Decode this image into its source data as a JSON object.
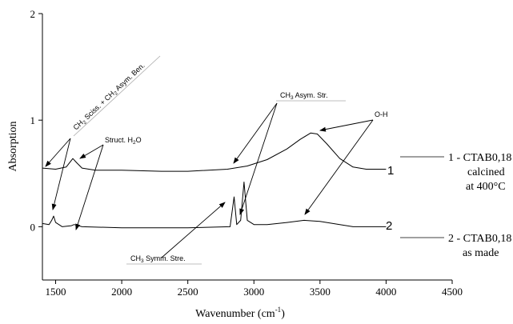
{
  "chart_data": {
    "type": "line",
    "title": "",
    "xlabel": "Wavenumber (cm",
    "xlabel_sup": "-1",
    "xlabel_close": ")",
    "ylabel": "Absorption",
    "xlim": [
      1400,
      4500
    ],
    "ylim": [
      -0.5,
      2
    ],
    "x_ticks": [
      1500,
      2000,
      2500,
      3000,
      3500,
      4000,
      4500
    ],
    "y_ticks": [
      0,
      1,
      2
    ],
    "grid": false,
    "legend_position": "right",
    "series": [
      {
        "name": "1 - CTAB0,18 calcined at 400°C",
        "curve_label": "1",
        "legend_lines": [
          "1 - CTAB0,18",
          "calcined",
          "at 400°C"
        ],
        "color": "#000000",
        "points": [
          [
            1400,
            0.55
          ],
          [
            1500,
            0.54
          ],
          [
            1580,
            0.56
          ],
          [
            1630,
            0.64
          ],
          [
            1660,
            0.6
          ],
          [
            1700,
            0.55
          ],
          [
            1800,
            0.53
          ],
          [
            2000,
            0.53
          ],
          [
            2300,
            0.52
          ],
          [
            2500,
            0.52
          ],
          [
            2800,
            0.54
          ],
          [
            2950,
            0.57
          ],
          [
            3100,
            0.63
          ],
          [
            3250,
            0.73
          ],
          [
            3350,
            0.82
          ],
          [
            3430,
            0.88
          ],
          [
            3480,
            0.87
          ],
          [
            3550,
            0.78
          ],
          [
            3650,
            0.64
          ],
          [
            3750,
            0.56
          ],
          [
            3850,
            0.54
          ],
          [
            4000,
            0.54
          ]
        ]
      },
      {
        "name": "2 - CTAB0,18 as made",
        "curve_label": "2",
        "legend_lines": [
          "2 - CTAB0,18",
          "as made"
        ],
        "color": "#000000",
        "points": [
          [
            1400,
            0.03
          ],
          [
            1450,
            0.02
          ],
          [
            1470,
            0.06
          ],
          [
            1485,
            0.1
          ],
          [
            1500,
            0.04
          ],
          [
            1550,
            0.0
          ],
          [
            1620,
            0.01
          ],
          [
            1640,
            0.02
          ],
          [
            1700,
            0.0
          ],
          [
            2000,
            -0.01
          ],
          [
            2500,
            -0.01
          ],
          [
            2820,
            0.0
          ],
          [
            2850,
            0.28
          ],
          [
            2870,
            0.02
          ],
          [
            2900,
            0.06
          ],
          [
            2925,
            0.42
          ],
          [
            2950,
            0.06
          ],
          [
            3000,
            0.02
          ],
          [
            3100,
            0.02
          ],
          [
            3250,
            0.04
          ],
          [
            3380,
            0.06
          ],
          [
            3500,
            0.05
          ],
          [
            3650,
            0.02
          ],
          [
            3750,
            0.0
          ],
          [
            4000,
            0.0
          ]
        ]
      }
    ],
    "annotations": {
      "ch2_sciss": {
        "main": "CH",
        "sub": "2",
        "mid": " Sciss. + CH",
        "sub2": "2",
        "end": " Asym. Ben."
      },
      "struct_h2o": {
        "main": "Struct. H",
        "sub": "2",
        "end": "O"
      },
      "ch3_asym": {
        "main": "CH",
        "sub": "3",
        "end": " Asym. Str."
      },
      "oh": {
        "text": "O-H"
      },
      "ch3_symm": {
        "main": "CH",
        "sub": "3",
        "end": " Symm. Stre."
      }
    }
  }
}
